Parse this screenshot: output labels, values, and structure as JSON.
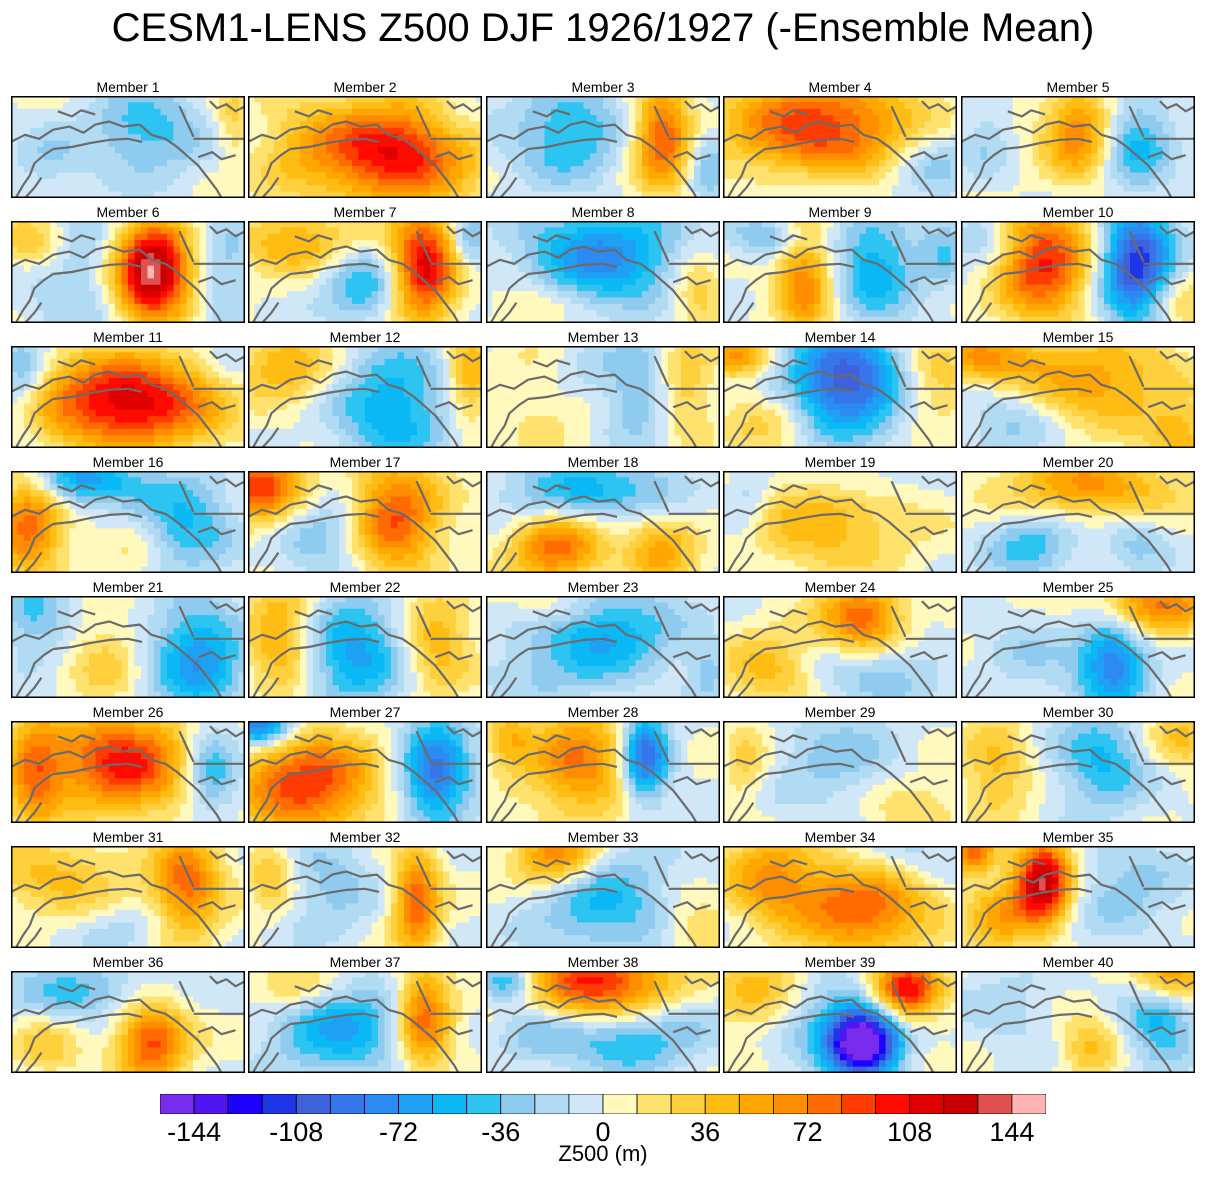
{
  "chart_data": {
    "type": "heatmap",
    "title": "CESM1-LENS Z500 DJF 1926/1927 (-Ensemble Mean)",
    "variable_label": "Z500 (m)",
    "colorbar": {
      "levels": [
        -144,
        -108,
        -72,
        -36,
        0,
        36,
        72,
        108,
        144
      ],
      "tick_labels": [
        "-144",
        "-108",
        "-72",
        "-36",
        "0",
        "36",
        "72",
        "108",
        "144"
      ],
      "colors": [
        "#7a2cec",
        "#4f16f2",
        "#1e00ff",
        "#1f35e8",
        "#3d62dc",
        "#3576ea",
        "#2c8bf2",
        "#1ea1f4",
        "#0bb8f6",
        "#2dc4f2",
        "#8ecbef",
        "#b1dbf2",
        "#cfe7f7",
        "#fff9bd",
        "#ffe26d",
        "#ffd03d",
        "#ffbd14",
        "#ffa600",
        "#ff8d00",
        "#ff6b00",
        "#ff3c00",
        "#ff0a00",
        "#e10000",
        "#c80000",
        "#e05050",
        "#ffb4b4"
      ]
    },
    "panels": [
      {
        "label": "Member 1",
        "blobs": [
          [
            0.58,
            0.35,
            0.25,
            0.45,
            -45
          ],
          [
            0.15,
            0.65,
            0.15,
            0.35,
            -20
          ],
          [
            0.95,
            0.25,
            0.08,
            0.4,
            30
          ]
        ]
      },
      {
        "label": "Member 2",
        "blobs": [
          [
            0.62,
            0.55,
            0.35,
            0.5,
            110
          ],
          [
            0.2,
            0.5,
            0.2,
            0.5,
            20
          ],
          [
            0.9,
            0.2,
            0.15,
            0.3,
            -20
          ]
        ]
      },
      {
        "label": "Member 3",
        "blobs": [
          [
            0.35,
            0.35,
            0.25,
            0.5,
            -50
          ],
          [
            0.75,
            0.4,
            0.12,
            0.5,
            90
          ],
          [
            0.95,
            0.7,
            0.08,
            0.4,
            -30
          ]
        ]
      },
      {
        "label": "Member 4",
        "blobs": [
          [
            0.42,
            0.3,
            0.4,
            0.5,
            95
          ],
          [
            0.9,
            0.7,
            0.2,
            0.4,
            -30
          ],
          [
            0.4,
            0.85,
            0.2,
            0.2,
            -15
          ]
        ]
      },
      {
        "label": "Member 5",
        "blobs": [
          [
            0.5,
            0.35,
            0.15,
            0.45,
            70
          ],
          [
            0.75,
            0.45,
            0.15,
            0.5,
            -50
          ],
          [
            0.1,
            0.4,
            0.1,
            0.5,
            -20
          ]
        ]
      },
      {
        "label": "Member 6",
        "blobs": [
          [
            0.6,
            0.5,
            0.16,
            0.45,
            160
          ],
          [
            0.3,
            0.5,
            0.25,
            0.6,
            -30
          ],
          [
            0.92,
            0.5,
            0.12,
            0.6,
            -30
          ],
          [
            0.1,
            0.2,
            0.15,
            0.3,
            40
          ]
        ]
      },
      {
        "label": "Member 7",
        "blobs": [
          [
            0.75,
            0.45,
            0.14,
            0.55,
            115
          ],
          [
            0.5,
            0.65,
            0.18,
            0.35,
            -50
          ],
          [
            0.2,
            0.2,
            0.25,
            0.3,
            50
          ],
          [
            0.95,
            0.2,
            0.08,
            0.3,
            -40
          ]
        ]
      },
      {
        "label": "Member 8",
        "blobs": [
          [
            0.5,
            0.35,
            0.35,
            0.5,
            -75
          ],
          [
            0.9,
            0.7,
            0.12,
            0.4,
            40
          ],
          [
            0.2,
            0.8,
            0.18,
            0.25,
            30
          ]
        ]
      },
      {
        "label": "Member 9",
        "blobs": [
          [
            0.35,
            0.55,
            0.12,
            0.6,
            70
          ],
          [
            0.65,
            0.45,
            0.18,
            0.5,
            -60
          ],
          [
            0.2,
            0.15,
            0.2,
            0.2,
            -40
          ],
          [
            0.95,
            0.3,
            0.1,
            0.4,
            -30
          ]
        ]
      },
      {
        "label": "Member 10",
        "blobs": [
          [
            0.35,
            0.4,
            0.2,
            0.55,
            100
          ],
          [
            0.75,
            0.45,
            0.15,
            0.6,
            -120
          ],
          [
            0.1,
            0.2,
            0.15,
            0.3,
            -30
          ],
          [
            0.9,
            0.85,
            0.2,
            0.3,
            30
          ]
        ]
      },
      {
        "label": "Member 11",
        "blobs": [
          [
            0.5,
            0.55,
            0.38,
            0.45,
            120
          ],
          [
            0.05,
            0.3,
            0.1,
            0.5,
            -40
          ],
          [
            0.95,
            0.15,
            0.12,
            0.3,
            -20
          ]
        ]
      },
      {
        "label": "Member 12",
        "blobs": [
          [
            0.62,
            0.6,
            0.25,
            0.6,
            -60
          ],
          [
            0.95,
            0.3,
            0.1,
            0.5,
            50
          ],
          [
            0.15,
            0.2,
            0.2,
            0.35,
            50
          ]
        ]
      },
      {
        "label": "Member 13",
        "blobs": [
          [
            0.65,
            0.45,
            0.16,
            0.5,
            -40
          ],
          [
            0.85,
            0.4,
            0.12,
            0.5,
            40
          ],
          [
            0.25,
            0.5,
            0.25,
            0.6,
            15
          ],
          [
            0.4,
            0.2,
            0.15,
            0.3,
            -20
          ]
        ]
      },
      {
        "label": "Member 14",
        "blobs": [
          [
            0.52,
            0.35,
            0.25,
            0.5,
            -110
          ],
          [
            0.05,
            0.1,
            0.15,
            0.2,
            60
          ],
          [
            0.9,
            0.3,
            0.15,
            0.4,
            40
          ],
          [
            0.2,
            0.7,
            0.2,
            0.35,
            30
          ]
        ]
      },
      {
        "label": "Member 15",
        "blobs": [
          [
            0.08,
            0.12,
            0.25,
            0.25,
            60
          ],
          [
            0.6,
            0.35,
            0.35,
            0.45,
            55
          ],
          [
            0.2,
            0.75,
            0.2,
            0.35,
            -30
          ],
          [
            0.95,
            0.9,
            0.15,
            0.3,
            40
          ]
        ]
      },
      {
        "label": "Member 16",
        "blobs": [
          [
            0.08,
            0.5,
            0.15,
            0.55,
            80
          ],
          [
            0.3,
            0.1,
            0.25,
            0.25,
            -70
          ],
          [
            0.75,
            0.5,
            0.2,
            0.5,
            -50
          ],
          [
            0.5,
            0.8,
            0.15,
            0.3,
            15
          ]
        ]
      },
      {
        "label": "Member 17",
        "blobs": [
          [
            0.05,
            0.15,
            0.2,
            0.35,
            90
          ],
          [
            0.62,
            0.45,
            0.2,
            0.55,
            90
          ],
          [
            0.35,
            0.6,
            0.2,
            0.45,
            -40
          ]
        ]
      },
      {
        "label": "Member 18",
        "blobs": [
          [
            0.3,
            0.75,
            0.2,
            0.35,
            80
          ],
          [
            0.75,
            0.7,
            0.15,
            0.4,
            60
          ],
          [
            0.4,
            0.2,
            0.35,
            0.35,
            -50
          ],
          [
            0.75,
            0.25,
            0.15,
            0.3,
            -30
          ]
        ]
      },
      {
        "label": "Member 19",
        "blobs": [
          [
            0.45,
            0.5,
            0.35,
            0.5,
            45
          ],
          [
            0.1,
            0.3,
            0.1,
            0.4,
            -25
          ],
          [
            0.6,
            0.1,
            0.2,
            0.2,
            -25
          ]
        ]
      },
      {
        "label": "Member 20",
        "blobs": [
          [
            0.55,
            0.15,
            0.4,
            0.35,
            60
          ],
          [
            0.3,
            0.7,
            0.2,
            0.35,
            -45
          ],
          [
            0.75,
            0.65,
            0.15,
            0.3,
            -30
          ]
        ]
      },
      {
        "label": "Member 21",
        "blobs": [
          [
            0.8,
            0.6,
            0.2,
            0.55,
            -70
          ],
          [
            0.1,
            0.2,
            0.15,
            0.4,
            -40
          ],
          [
            0.4,
            0.6,
            0.15,
            0.4,
            30
          ]
        ]
      },
      {
        "label": "Member 22",
        "blobs": [
          [
            0.45,
            0.55,
            0.25,
            0.55,
            -65
          ],
          [
            0.15,
            0.4,
            0.15,
            0.6,
            60
          ],
          [
            0.8,
            0.45,
            0.15,
            0.55,
            50
          ]
        ]
      },
      {
        "label": "Member 23",
        "blobs": [
          [
            0.5,
            0.35,
            0.3,
            0.45,
            -65
          ],
          [
            0.3,
            0.1,
            0.2,
            0.25,
            30
          ],
          [
            0.2,
            0.8,
            0.25,
            0.3,
            -20
          ],
          [
            0.95,
            0.75,
            0.1,
            0.3,
            -30
          ]
        ]
      },
      {
        "label": "Member 24",
        "blobs": [
          [
            0.6,
            0.25,
            0.18,
            0.4,
            85
          ],
          [
            0.65,
            0.7,
            0.25,
            0.35,
            -45
          ],
          [
            0.2,
            0.7,
            0.2,
            0.4,
            40
          ]
        ]
      },
      {
        "label": "Member 25",
        "blobs": [
          [
            0.65,
            0.6,
            0.15,
            0.5,
            -85
          ],
          [
            0.8,
            0.1,
            0.25,
            0.3,
            80
          ],
          [
            0.3,
            0.6,
            0.2,
            0.5,
            -20
          ]
        ]
      },
      {
        "label": "Member 26",
        "blobs": [
          [
            0.48,
            0.4,
            0.3,
            0.5,
            100
          ],
          [
            0.1,
            0.5,
            0.12,
            0.5,
            70
          ],
          [
            0.85,
            0.45,
            0.12,
            0.5,
            -55
          ]
        ]
      },
      {
        "label": "Member 27",
        "blobs": [
          [
            0.25,
            0.6,
            0.3,
            0.5,
            95
          ],
          [
            0.8,
            0.5,
            0.15,
            0.6,
            -85
          ],
          [
            0.05,
            0.05,
            0.15,
            0.2,
            -100
          ]
        ]
      },
      {
        "label": "Member 28",
        "blobs": [
          [
            0.68,
            0.35,
            0.1,
            0.45,
            -100
          ],
          [
            0.4,
            0.4,
            0.22,
            0.55,
            70
          ],
          [
            0.1,
            0.2,
            0.1,
            0.3,
            40
          ]
        ]
      },
      {
        "label": "Member 29",
        "blobs": [
          [
            0.5,
            0.4,
            0.3,
            0.5,
            -30
          ],
          [
            0.1,
            0.4,
            0.1,
            0.4,
            30
          ],
          [
            0.8,
            0.8,
            0.2,
            0.3,
            30
          ]
        ]
      },
      {
        "label": "Member 30",
        "blobs": [
          [
            0.6,
            0.4,
            0.2,
            0.5,
            -50
          ],
          [
            0.15,
            0.5,
            0.15,
            0.5,
            40
          ],
          [
            0.95,
            0.15,
            0.15,
            0.3,
            40
          ]
        ]
      },
      {
        "label": "Member 31",
        "blobs": [
          [
            0.75,
            0.4,
            0.15,
            0.5,
            80
          ],
          [
            0.2,
            0.3,
            0.3,
            0.4,
            40
          ],
          [
            0.5,
            0.8,
            0.25,
            0.25,
            -20
          ]
        ]
      },
      {
        "label": "Member 32",
        "blobs": [
          [
            0.72,
            0.55,
            0.1,
            0.5,
            85
          ],
          [
            0.35,
            0.4,
            0.2,
            0.5,
            -30
          ],
          [
            0.1,
            0.3,
            0.1,
            0.35,
            40
          ]
        ]
      },
      {
        "label": "Member 33",
        "blobs": [
          [
            0.3,
            0.1,
            0.18,
            0.3,
            80
          ],
          [
            0.5,
            0.55,
            0.3,
            0.55,
            -50
          ],
          [
            0.9,
            0.8,
            0.15,
            0.3,
            30
          ]
        ]
      },
      {
        "label": "Member 34",
        "blobs": [
          [
            0.6,
            0.6,
            0.3,
            0.45,
            85
          ],
          [
            0.2,
            0.3,
            0.2,
            0.4,
            60
          ],
          [
            0.8,
            0.15,
            0.25,
            0.3,
            -25
          ]
        ]
      },
      {
        "label": "Member 35",
        "blobs": [
          [
            0.35,
            0.35,
            0.12,
            0.4,
            140
          ],
          [
            0.15,
            0.7,
            0.15,
            0.35,
            50
          ],
          [
            0.7,
            0.4,
            0.25,
            0.5,
            -30
          ],
          [
            0.05,
            0.05,
            0.1,
            0.2,
            80
          ]
        ]
      },
      {
        "label": "Member 36",
        "blobs": [
          [
            0.6,
            0.7,
            0.15,
            0.4,
            90
          ],
          [
            0.3,
            0.2,
            0.3,
            0.3,
            -40
          ],
          [
            0.15,
            0.75,
            0.15,
            0.3,
            30
          ]
        ]
      },
      {
        "label": "Member 37",
        "blobs": [
          [
            0.75,
            0.45,
            0.12,
            0.55,
            85
          ],
          [
            0.4,
            0.55,
            0.3,
            0.5,
            -60
          ],
          [
            0.2,
            0.15,
            0.2,
            0.25,
            40
          ]
        ]
      },
      {
        "label": "Member 38",
        "blobs": [
          [
            0.48,
            0.12,
            0.3,
            0.35,
            105
          ],
          [
            0.1,
            0.1,
            0.12,
            0.2,
            -60
          ],
          [
            0.6,
            0.65,
            0.35,
            0.35,
            -50
          ],
          [
            0.2,
            0.65,
            0.15,
            0.3,
            -20
          ]
        ]
      },
      {
        "label": "Member 39",
        "blobs": [
          [
            0.6,
            0.7,
            0.15,
            0.35,
            -160
          ],
          [
            0.78,
            0.2,
            0.15,
            0.3,
            115
          ],
          [
            0.15,
            0.3,
            0.2,
            0.35,
            60
          ],
          [
            0.4,
            0.5,
            0.35,
            0.4,
            -40
          ]
        ]
      },
      {
        "label": "Member 40",
        "blobs": [
          [
            0.85,
            0.5,
            0.15,
            0.5,
            -50
          ],
          [
            0.9,
            0.05,
            0.15,
            0.25,
            70
          ],
          [
            0.55,
            0.75,
            0.12,
            0.3,
            40
          ],
          [
            0.2,
            0.35,
            0.2,
            0.4,
            -20
          ]
        ]
      }
    ]
  }
}
